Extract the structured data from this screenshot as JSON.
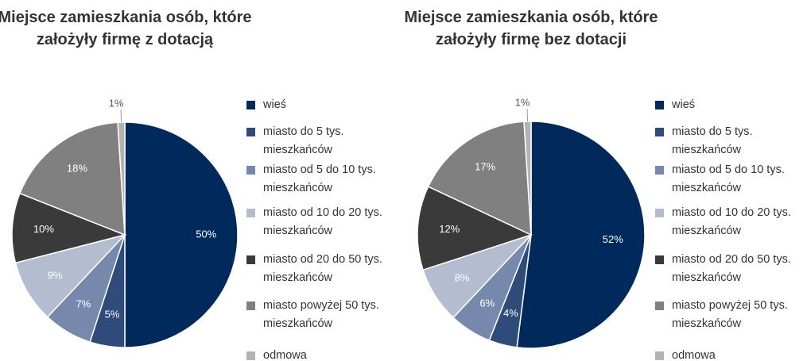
{
  "chart_data": [
    {
      "type": "pie",
      "title": "Miejsce zamieszkania osób, które założyły firmę z dotacją",
      "categories": [
        "wieś",
        "miasto do 5 tys. mieszkańców",
        "miasto od 5 do 10 tys. mieszkańców",
        "miasto od 10 do 20 tys. mieszkańców",
        "miasto od 20 do 50 tys. mieszkańców",
        "miasto powyżej 50 tys. mieszkańców",
        "odmowa"
      ],
      "values": [
        50,
        5,
        7,
        9,
        10,
        18,
        1
      ],
      "value_labels": [
        "50%",
        "5%",
        "7%",
        "9%",
        "10%",
        "18%",
        "1%"
      ],
      "colors": [
        "#002a5c",
        "#2e4b7a",
        "#7688ac",
        "#b4bccf",
        "#3a3a3a",
        "#808080",
        "#b3b3b3"
      ]
    },
    {
      "type": "pie",
      "title": "Miejsce zamieszkania osób, które założyły firmę bez dotacji",
      "categories": [
        "wieś",
        "miasto do 5 tys. mieszkańców",
        "miasto od 5 do 10 tys. mieszkańców",
        "miasto od 10 do 20 tys. mieszkańców",
        "miasto od 20 do 50 tys. mieszkańców",
        "miasto powyżej 50 tys. mieszkańców",
        "odmowa"
      ],
      "values": [
        52,
        4,
        6,
        8,
        12,
        17,
        1
      ],
      "value_labels": [
        "52%",
        "4%",
        "6%",
        "8%",
        "12%",
        "17%",
        "1%"
      ],
      "colors": [
        "#002a5c",
        "#2e4b7a",
        "#7688ac",
        "#b4bccf",
        "#3a3a3a",
        "#808080",
        "#b3b3b3"
      ]
    }
  ]
}
